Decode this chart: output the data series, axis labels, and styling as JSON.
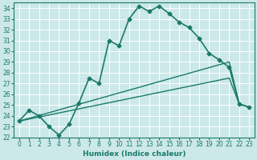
{
  "xlabel": "Humidex (Indice chaleur)",
  "xlim": [
    -0.5,
    23.5
  ],
  "ylim": [
    22,
    34.5
  ],
  "yticks": [
    22,
    23,
    24,
    25,
    26,
    27,
    28,
    29,
    30,
    31,
    32,
    33,
    34
  ],
  "xticks": [
    0,
    1,
    2,
    3,
    4,
    5,
    6,
    7,
    8,
    9,
    10,
    11,
    12,
    13,
    14,
    15,
    16,
    17,
    18,
    19,
    20,
    21,
    22,
    23
  ],
  "bg_color": "#cce8e8",
  "grid_color": "#b0d8d8",
  "line_color": "#1a7a6a",
  "lines": [
    {
      "x": [
        0,
        1,
        2,
        3,
        4,
        5,
        6,
        7,
        8,
        9,
        10,
        11,
        12,
        13,
        14,
        15,
        16,
        17,
        18,
        19,
        20,
        21,
        22,
        23
      ],
      "y": [
        23.5,
        24.5,
        24.0,
        23.0,
        22.2,
        23.2,
        25.2,
        27.5,
        27.0,
        31.0,
        30.5,
        33.0,
        34.2,
        33.7,
        34.2,
        33.5,
        32.7,
        32.2,
        31.2,
        29.8,
        29.2,
        28.5,
        25.1,
        24.8
      ],
      "marker": "D",
      "markersize": 2.5,
      "linewidth": 1.2
    },
    {
      "x": [
        0,
        21,
        22,
        23
      ],
      "y": [
        23.5,
        29.0,
        25.1,
        24.8
      ],
      "marker": null,
      "linewidth": 1.0
    },
    {
      "x": [
        0,
        21,
        22,
        23
      ],
      "y": [
        23.5,
        27.5,
        25.1,
        24.8
      ],
      "marker": null,
      "linewidth": 1.0
    }
  ]
}
